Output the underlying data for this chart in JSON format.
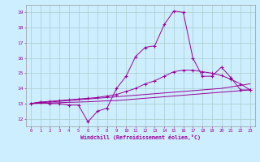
{
  "xlabel": "Windchill (Refroidissement éolien,°C)",
  "bg_color": "#cceeff",
  "grid_color": "#aacccc",
  "line_color": "#990099",
  "xlim": [
    -0.5,
    23.5
  ],
  "ylim": [
    11.5,
    19.5
  ],
  "yticks": [
    12,
    13,
    14,
    15,
    16,
    17,
    18,
    19
  ],
  "xticks": [
    0,
    1,
    2,
    3,
    4,
    5,
    6,
    7,
    8,
    9,
    10,
    11,
    12,
    13,
    14,
    15,
    16,
    17,
    18,
    19,
    20,
    21,
    22,
    23
  ],
  "series1_x": [
    0,
    1,
    2,
    3,
    4,
    5,
    6,
    7,
    8,
    9,
    10,
    11,
    12,
    13,
    14,
    15,
    16,
    17,
    18,
    19,
    20,
    21,
    22,
    23
  ],
  "series1_y": [
    13.0,
    13.1,
    13.0,
    13.0,
    12.9,
    12.9,
    11.8,
    12.5,
    12.7,
    14.0,
    14.8,
    16.1,
    16.7,
    16.8,
    18.2,
    19.1,
    19.0,
    16.0,
    14.8,
    14.8,
    15.4,
    14.7,
    13.9,
    13.9
  ],
  "series2_x": [
    0,
    1,
    2,
    3,
    4,
    5,
    6,
    7,
    8,
    9,
    10,
    11,
    12,
    13,
    14,
    15,
    16,
    17,
    18,
    19,
    20,
    21,
    22,
    23
  ],
  "series2_y": [
    13.0,
    13.05,
    13.1,
    13.15,
    13.2,
    13.25,
    13.3,
    13.35,
    13.4,
    13.45,
    13.5,
    13.55,
    13.6,
    13.65,
    13.7,
    13.75,
    13.8,
    13.85,
    13.9,
    13.95,
    14.0,
    14.1,
    14.2,
    14.3
  ],
  "series3_x": [
    0,
    1,
    2,
    3,
    4,
    5,
    6,
    7,
    8,
    9,
    10,
    11,
    12,
    13,
    14,
    15,
    16,
    17,
    18,
    19,
    20,
    21,
    22,
    23
  ],
  "series3_y": [
    13.0,
    13.1,
    13.15,
    13.2,
    13.25,
    13.3,
    13.35,
    13.4,
    13.5,
    13.6,
    13.8,
    14.0,
    14.3,
    14.5,
    14.8,
    15.1,
    15.2,
    15.2,
    15.1,
    15.0,
    14.85,
    14.6,
    14.3,
    13.9
  ],
  "series4_x": [
    0,
    1,
    2,
    3,
    4,
    5,
    6,
    7,
    8,
    9,
    10,
    11,
    12,
    13,
    14,
    15,
    16,
    17,
    18,
    19,
    20,
    21,
    22,
    23
  ],
  "series4_y": [
    13.0,
    13.02,
    13.04,
    13.06,
    13.08,
    13.1,
    13.12,
    13.15,
    13.18,
    13.2,
    13.25,
    13.3,
    13.35,
    13.4,
    13.45,
    13.5,
    13.55,
    13.6,
    13.65,
    13.7,
    13.75,
    13.8,
    13.85,
    13.9
  ]
}
